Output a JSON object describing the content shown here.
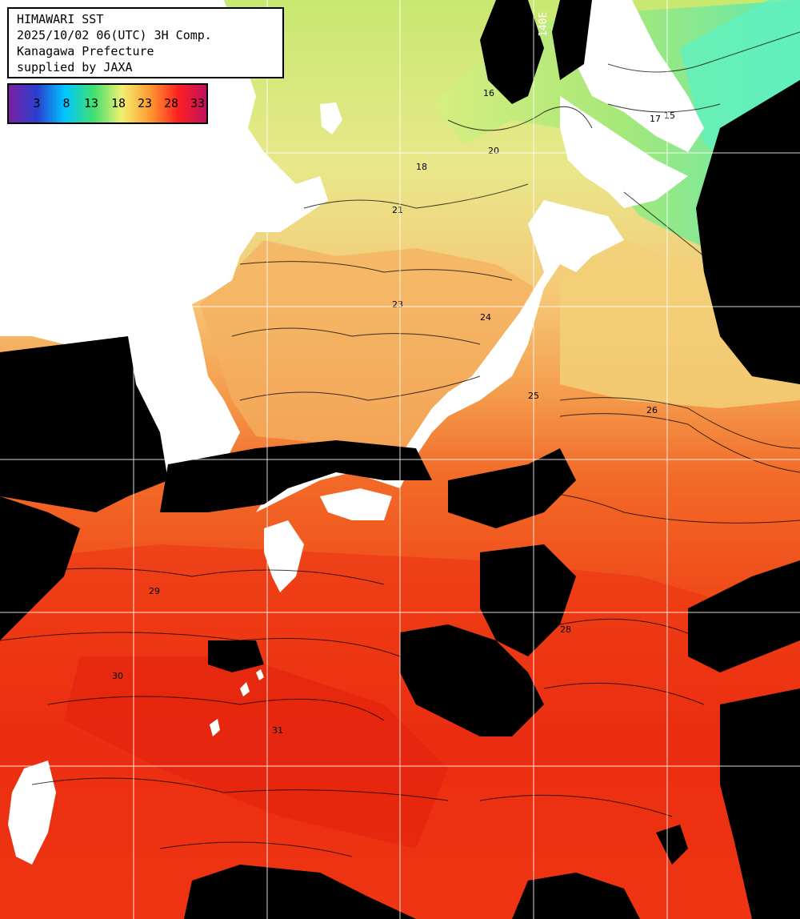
{
  "info": {
    "line1": "HIMAWARI SST",
    "line2": "2025/10/02 06(UTC) 3H Comp.",
    "line3": "Kanagawa Prefecture",
    "line4": "supplied by JAXA"
  },
  "legend": {
    "labels": [
      "3",
      "8",
      "13",
      "18",
      "23",
      "28",
      "33"
    ],
    "colors": [
      "#7a1fa0",
      "#2a3fd0",
      "#00c8ff",
      "#40e070",
      "#f0f070",
      "#ff9a30",
      "#ff2020",
      "#c01060"
    ]
  },
  "grid": {
    "longitude_label": "140E"
  },
  "contour_labels": [
    "16",
    "17",
    "18",
    "15",
    "20",
    "21",
    "23",
    "24",
    "25",
    "26",
    "28",
    "29",
    "30",
    "31"
  ],
  "colors": {
    "land": "#ffffff",
    "cloud": "#000000",
    "gridline": "#ffffff"
  }
}
